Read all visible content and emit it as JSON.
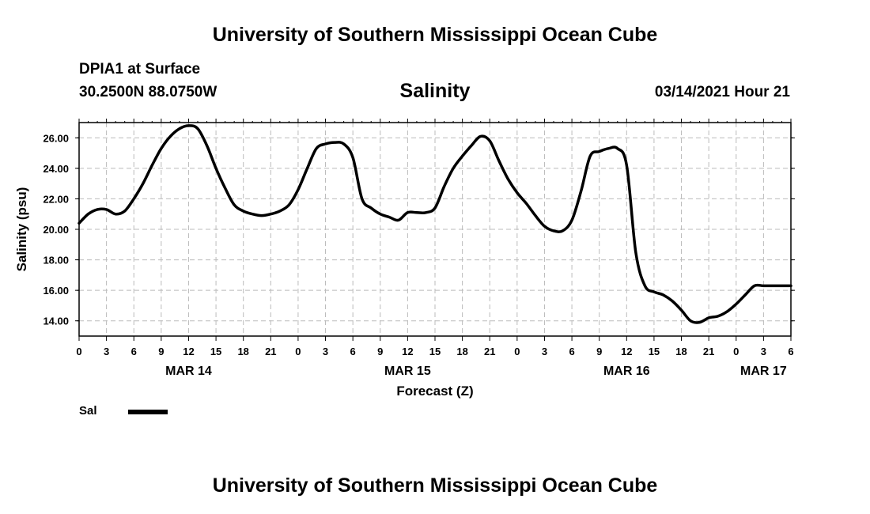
{
  "header": {
    "top_title": "University of Southern Mississippi Ocean Cube",
    "station": "DPIA1 at Surface",
    "coords": "30.2500N 88.0750W",
    "chart_title": "Salinity",
    "datetime": "03/14/2021 Hour 21"
  },
  "footer": {
    "bottom_title": "University of Southern Mississippi Ocean Cube"
  },
  "chart_data": {
    "type": "line",
    "title": "Salinity",
    "xlabel": "Forecast (Z)",
    "ylabel": "Salinity (psu)",
    "xlim": [
      0,
      78
    ],
    "ylim": [
      13.0,
      27.0
    ],
    "grid": true,
    "x_tick_values": [
      0,
      3,
      6,
      9,
      12,
      15,
      18,
      21,
      24,
      27,
      30,
      33,
      36,
      39,
      42,
      45,
      48,
      51,
      54,
      57,
      60,
      63,
      66,
      69,
      72,
      75,
      78
    ],
    "x_tick_labels": [
      "0",
      "3",
      "6",
      "9",
      "12",
      "15",
      "18",
      "21",
      "0",
      "3",
      "6",
      "9",
      "12",
      "15",
      "18",
      "21",
      "0",
      "3",
      "6",
      "9",
      "12",
      "15",
      "18",
      "21",
      "0",
      "3",
      "6"
    ],
    "date_labels": [
      {
        "x": 12,
        "label": "MAR 14"
      },
      {
        "x": 36,
        "label": "MAR 15"
      },
      {
        "x": 60,
        "label": "MAR 16"
      },
      {
        "x": 75,
        "label": "MAR 17"
      }
    ],
    "y_ticks": [
      14,
      16,
      18,
      20,
      22,
      24,
      26
    ],
    "y_tick_labels": [
      "14.00",
      "16.00",
      "18.00",
      "20.00",
      "22.00",
      "24.00",
      "26.00"
    ],
    "legend": {
      "label": "Sal",
      "position": "bottom-left",
      "color": "#000000"
    },
    "series": [
      {
        "name": "Sal",
        "color": "#000000",
        "x": [
          0,
          1,
          2,
          3,
          4,
          5,
          6,
          7,
          8,
          9,
          10,
          11,
          12,
          13,
          14,
          15,
          16,
          17,
          18,
          19,
          20,
          21,
          22,
          23,
          24,
          25,
          26,
          27,
          28,
          29,
          30,
          31,
          32,
          33,
          34,
          35,
          36,
          37,
          38,
          39,
          40,
          41,
          42,
          43,
          44,
          45,
          46,
          47,
          48,
          49,
          50,
          51,
          52,
          53,
          54,
          55,
          56,
          57,
          58,
          59,
          60,
          61,
          62,
          63,
          64,
          65,
          66,
          67,
          68,
          69,
          70,
          71,
          72,
          73,
          74,
          75,
          76,
          77,
          78
        ],
        "values": [
          20.4,
          21.0,
          21.3,
          21.3,
          21.0,
          21.2,
          22.0,
          23.0,
          24.2,
          25.3,
          26.1,
          26.6,
          26.8,
          26.6,
          25.5,
          24.0,
          22.7,
          21.6,
          21.2,
          21.0,
          20.9,
          21.0,
          21.2,
          21.6,
          22.6,
          24.0,
          25.3,
          25.6,
          25.7,
          25.6,
          24.7,
          22.0,
          21.4,
          21.0,
          20.8,
          20.6,
          21.1,
          21.1,
          21.1,
          21.4,
          22.8,
          24.0,
          24.8,
          25.5,
          26.1,
          25.8,
          24.5,
          23.3,
          22.4,
          21.7,
          20.9,
          20.2,
          19.9,
          19.9,
          20.6,
          22.5,
          24.8,
          25.1,
          25.3,
          25.3,
          24.2,
          18.5,
          16.3,
          15.9,
          15.7,
          15.3,
          14.7,
          14.0,
          13.9,
          14.2,
          14.3,
          14.6,
          15.1,
          15.7,
          16.3,
          16.3,
          16.3,
          16.3,
          16.3
        ]
      }
    ]
  }
}
